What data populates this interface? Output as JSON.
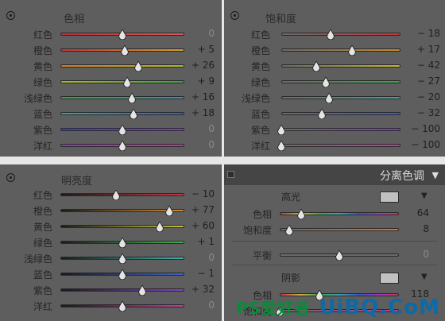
{
  "panels": {
    "hue": {
      "title": "色相",
      "rows": [
        {
          "label": "红色",
          "value": "0",
          "pos": 0.5,
          "track": "linear-gradient(90deg,#b7323a,#d85a5a)"
        },
        {
          "label": "橙色",
          "value": "+ 5",
          "pos": 0.52,
          "track": "linear-gradient(90deg,#c0363c,#d6a02c)"
        },
        {
          "label": "黄色",
          "value": "+ 26",
          "pos": 0.63,
          "track": "linear-gradient(90deg,#cf7d2a,#b2b82c)"
        },
        {
          "label": "绿色",
          "value": "+ 9",
          "pos": 0.54,
          "track": "linear-gradient(90deg,#a9b62b,#3da24b)"
        },
        {
          "label": "浅绿色",
          "value": "+ 16",
          "pos": 0.58,
          "track": "linear-gradient(90deg,#3ca349,#3d8fb0)"
        },
        {
          "label": "蓝色",
          "value": "+ 18",
          "pos": 0.59,
          "track": "linear-gradient(90deg,#3aa596,#3a5ec4)"
        },
        {
          "label": "紫色",
          "value": "0",
          "pos": 0.5,
          "track": "linear-gradient(90deg,#3b3fc5,#7f3ec2)"
        },
        {
          "label": "洋红",
          "value": "0",
          "pos": 0.5,
          "track": "linear-gradient(90deg,#8e3ac0,#c23993)"
        }
      ]
    },
    "saturation": {
      "title": "饱和度",
      "rows": [
        {
          "label": "红色",
          "value": "− 18",
          "pos": 0.41,
          "track": "linear-gradient(90deg,#6b6b6b,#c13a3e)"
        },
        {
          "label": "橙色",
          "value": "+ 17",
          "pos": 0.59,
          "track": "linear-gradient(90deg,#6b6b6b,#c98a2e)"
        },
        {
          "label": "黄色",
          "value": "− 42",
          "pos": 0.29,
          "track": "linear-gradient(90deg,#6b6b6b,#c6b72f)"
        },
        {
          "label": "绿色",
          "value": "− 27",
          "pos": 0.37,
          "track": "linear-gradient(90deg,#6b6b6b,#3ca548)"
        },
        {
          "label": "浅绿色",
          "value": "− 20",
          "pos": 0.4,
          "track": "linear-gradient(90deg,#6b6b6b,#3ca59a)"
        },
        {
          "label": "蓝色",
          "value": "− 32",
          "pos": 0.34,
          "track": "linear-gradient(90deg,#6b6b6b,#3c5fc5)"
        },
        {
          "label": "紫色",
          "value": "− 100",
          "pos": 0.0,
          "track": "linear-gradient(90deg,#6b6b6b,#7a3cc2)"
        },
        {
          "label": "洋红",
          "value": "− 100",
          "pos": 0.0,
          "track": "linear-gradient(90deg,#6b6b6b,#c13b9a)"
        }
      ]
    },
    "luminance": {
      "title": "明亮度",
      "rows": [
        {
          "label": "红色",
          "value": "− 10",
          "pos": 0.45,
          "track": "linear-gradient(90deg,#1a1a1a,#c2393f)"
        },
        {
          "label": "橙色",
          "value": "+ 77",
          "pos": 0.88,
          "track": "linear-gradient(90deg,#1a1a1a,#cf8c34)"
        },
        {
          "label": "黄色",
          "value": "+ 60",
          "pos": 0.8,
          "track": "linear-gradient(90deg,#1a1a1a,#c8c23a)"
        },
        {
          "label": "绿色",
          "value": "+ 1",
          "pos": 0.5,
          "track": "linear-gradient(90deg,#1a1a1a,#45b04e)"
        },
        {
          "label": "浅绿色",
          "value": "0",
          "pos": 0.5,
          "track": "linear-gradient(90deg,#1a1a1a,#3fb3aa)"
        },
        {
          "label": "蓝色",
          "value": "− 1",
          "pos": 0.5,
          "track": "linear-gradient(90deg,#1a1a1a,#3d63c8)"
        },
        {
          "label": "紫色",
          "value": "+ 32",
          "pos": 0.66,
          "track": "linear-gradient(90deg,#1a1a1a,#8343c6)"
        },
        {
          "label": "洋红",
          "value": "0",
          "pos": 0.5,
          "track": "linear-gradient(90deg,#1a1a1a,#c43f9b)"
        }
      ]
    },
    "split_toning": {
      "title": "分离色调",
      "highlights": {
        "title": "高光",
        "hue": {
          "label": "色相",
          "value": "64",
          "pos": 0.18
        },
        "saturation": {
          "label": "饱和度",
          "value": "8",
          "pos": 0.08
        }
      },
      "balance": {
        "label": "平衡",
        "value": "0",
        "pos": 0.5
      },
      "shadows": {
        "title": "阴影",
        "hue": {
          "label": "色相",
          "value": "118",
          "pos": 0.33
        },
        "saturation": {
          "label": "饱和度",
          "value": "",
          "pos": 0.0
        }
      }
    }
  },
  "watermark": {
    "part1": "UiBQ.CoM",
    "part2": "PS爱好者"
  }
}
